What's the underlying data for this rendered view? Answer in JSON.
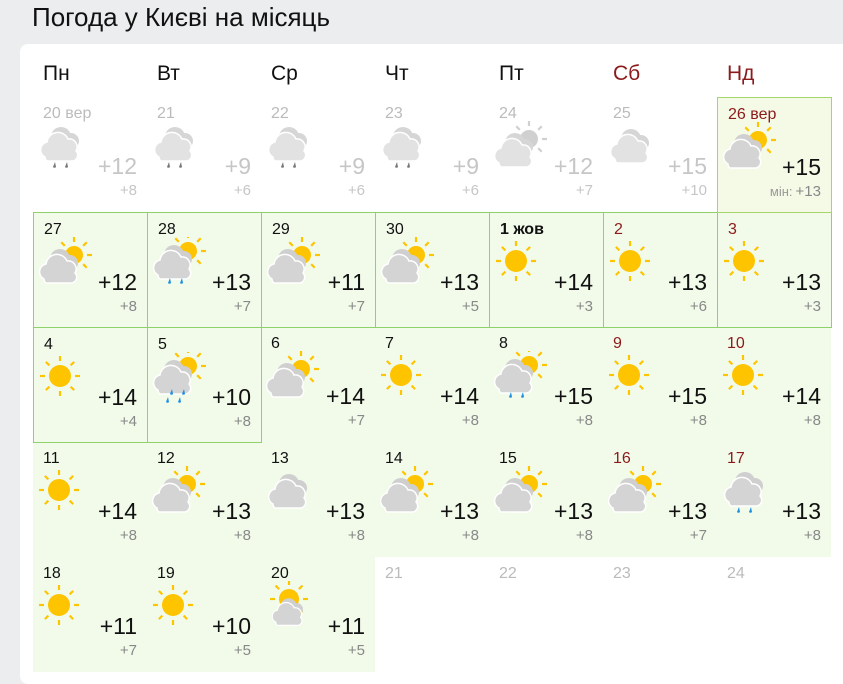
{
  "title": "Погода у Києві на місяць",
  "weekdays": [
    {
      "label": "Пн",
      "weekend": false
    },
    {
      "label": "Вт",
      "weekend": false
    },
    {
      "label": "Ср",
      "weekend": false
    },
    {
      "label": "Чт",
      "weekend": false
    },
    {
      "label": "Пт",
      "weekend": false
    },
    {
      "label": "Сб",
      "weekend": true
    },
    {
      "label": "Нд",
      "weekend": true
    }
  ],
  "colors": {
    "weekend": "#8b1a1a",
    "highlight_border": "#8fd16a",
    "future_bg": "#f2fbea",
    "sun": "#ffc400",
    "rain": "#1e90e0"
  },
  "min_label": "мін:",
  "days": [
    {
      "date": "20 вер",
      "icon": "rain",
      "max": "+12",
      "min": "+8",
      "state": "past"
    },
    {
      "date": "21",
      "icon": "rain",
      "max": "+9",
      "min": "+6",
      "state": "past"
    },
    {
      "date": "22",
      "icon": "rain",
      "max": "+9",
      "min": "+6",
      "state": "past"
    },
    {
      "date": "23",
      "icon": "rain",
      "max": "+9",
      "min": "+6",
      "state": "past"
    },
    {
      "date": "24",
      "icon": "partly-cloudy",
      "max": "+12",
      "min": "+7",
      "state": "past"
    },
    {
      "date": "25",
      "icon": "cloudy",
      "max": "+15",
      "min": "+10",
      "state": "past"
    },
    {
      "date": "26 вер",
      "icon": "partly-cloudy",
      "max": "+15",
      "min": "+13",
      "state": "today"
    },
    {
      "date": "27",
      "icon": "partly-cloudy",
      "max": "+12",
      "min": "+8",
      "state": "border"
    },
    {
      "date": "28",
      "icon": "partly-cloudy-rain",
      "max": "+13",
      "min": "+7",
      "state": "border"
    },
    {
      "date": "29",
      "icon": "partly-cloudy",
      "max": "+11",
      "min": "+7",
      "state": "border"
    },
    {
      "date": "30",
      "icon": "partly-cloudy",
      "max": "+13",
      "min": "+5",
      "state": "border"
    },
    {
      "date": "1 жов",
      "icon": "sunny",
      "max": "+14",
      "min": "+3",
      "state": "border",
      "bold": true
    },
    {
      "date": "2",
      "icon": "sunny",
      "max": "+13",
      "min": "+6",
      "state": "border"
    },
    {
      "date": "3",
      "icon": "sunny",
      "max": "+13",
      "min": "+3",
      "state": "border"
    },
    {
      "date": "4",
      "icon": "sunny",
      "max": "+14",
      "min": "+4",
      "state": "border"
    },
    {
      "date": "5",
      "icon": "partly-cloudy-heavy-rain",
      "max": "+10",
      "min": "+8",
      "state": "border"
    },
    {
      "date": "6",
      "icon": "partly-cloudy",
      "max": "+14",
      "min": "+7",
      "state": "future"
    },
    {
      "date": "7",
      "icon": "sunny",
      "max": "+14",
      "min": "+8",
      "state": "future"
    },
    {
      "date": "8",
      "icon": "partly-cloudy-rain",
      "max": "+15",
      "min": "+8",
      "state": "future"
    },
    {
      "date": "9",
      "icon": "sunny",
      "max": "+15",
      "min": "+8",
      "state": "future"
    },
    {
      "date": "10",
      "icon": "sunny",
      "max": "+14",
      "min": "+8",
      "state": "future"
    },
    {
      "date": "11",
      "icon": "sunny",
      "max": "+14",
      "min": "+8",
      "state": "future"
    },
    {
      "date": "12",
      "icon": "partly-cloudy",
      "max": "+13",
      "min": "+8",
      "state": "future"
    },
    {
      "date": "13",
      "icon": "cloudy",
      "max": "+13",
      "min": "+8",
      "state": "future"
    },
    {
      "date": "14",
      "icon": "partly-cloudy",
      "max": "+13",
      "min": "+8",
      "state": "future"
    },
    {
      "date": "15",
      "icon": "partly-cloudy",
      "max": "+13",
      "min": "+8",
      "state": "future"
    },
    {
      "date": "16",
      "icon": "partly-cloudy",
      "max": "+13",
      "min": "+7",
      "state": "future"
    },
    {
      "date": "17",
      "icon": "rain",
      "max": "+13",
      "min": "+8",
      "state": "future"
    },
    {
      "date": "18",
      "icon": "sunny",
      "max": "+11",
      "min": "+7",
      "state": "future"
    },
    {
      "date": "19",
      "icon": "sunny",
      "max": "+10",
      "min": "+5",
      "state": "future"
    },
    {
      "date": "20",
      "icon": "sun-behind-cloud",
      "max": "+11",
      "min": "+5",
      "state": "future"
    },
    {
      "date": "21",
      "state": "empty"
    },
    {
      "date": "22",
      "state": "empty"
    },
    {
      "date": "23",
      "state": "empty"
    },
    {
      "date": "24",
      "state": "empty"
    }
  ]
}
